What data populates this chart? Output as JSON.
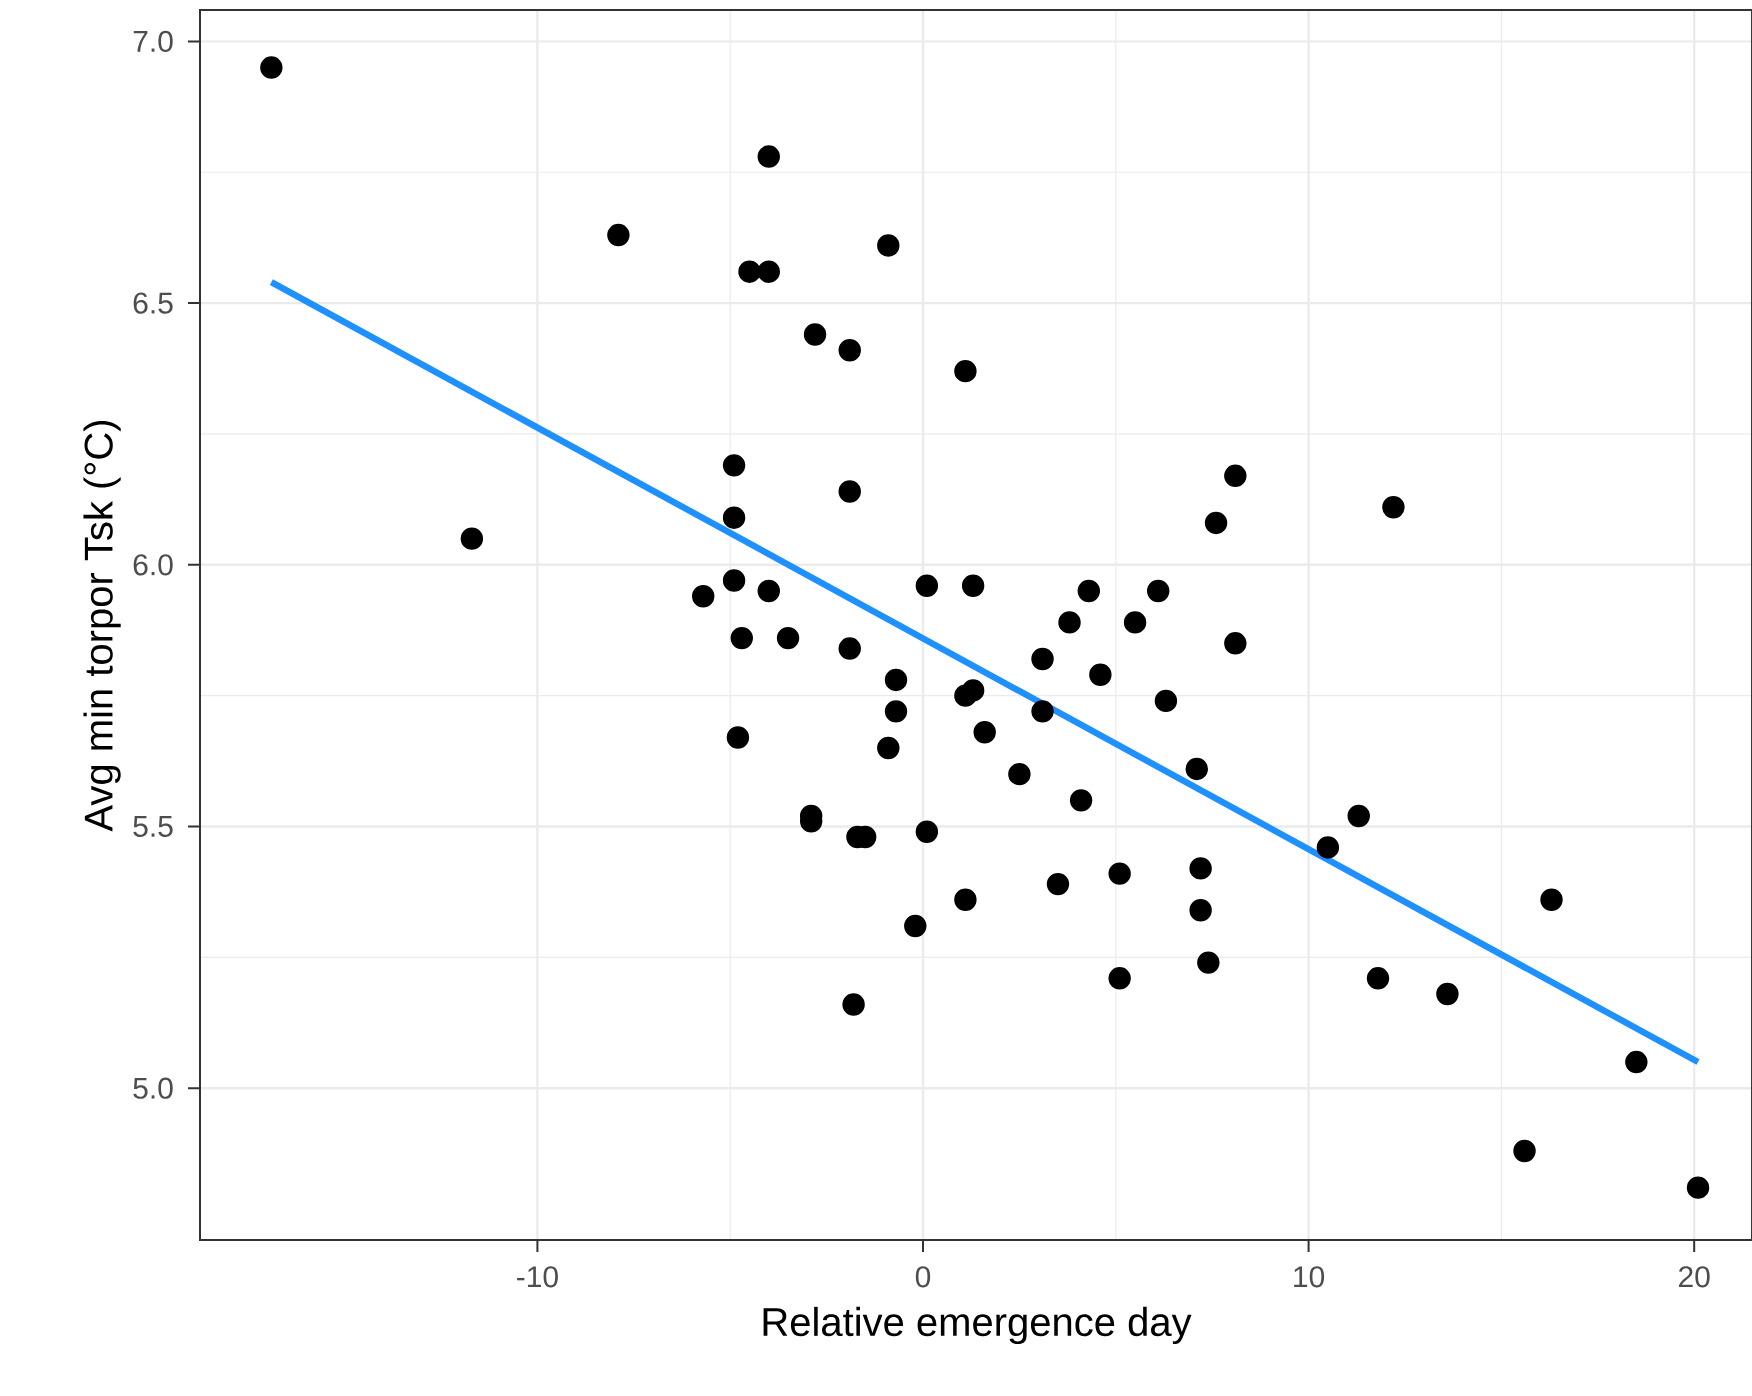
{
  "chart_data": {
    "type": "scatter",
    "xlabel": "Relative emergence day",
    "ylabel": "Avg min torpor Tsk (°C)",
    "xlim": [
      -18.75,
      21.5
    ],
    "ylim": [
      4.71,
      7.06
    ],
    "xticks": [
      -10,
      0,
      10,
      20
    ],
    "yticks": [
      {
        "value": 5,
        "label": "5.0"
      },
      5.5,
      {
        "value": 6,
        "label": "6.0"
      },
      6.5,
      {
        "value": 7,
        "label": "7.0"
      }
    ],
    "grid": true,
    "series": [
      {
        "color": "#000000",
        "marker": "circle",
        "x": [
          -16.9,
          -11.7,
          -7.9,
          -4.0,
          -4.5,
          -4.0,
          -0.9,
          -2.8,
          -1.9,
          1.1,
          -4.9,
          -4.9,
          -1.9,
          -5.7,
          -4.9,
          -4.0,
          -3.5,
          -4.7,
          0.1,
          1.3,
          -1.9,
          -0.7,
          -0.7,
          -0.9,
          -4.8,
          1.1,
          1.3,
          1.6,
          2.5,
          3.1,
          3.8,
          4.3,
          4.6,
          5.5,
          6.1,
          6.3,
          7.6,
          8.1,
          8.1,
          12.2,
          7.1,
          11.3,
          10.5,
          16.3,
          11.8,
          13.6,
          18.5,
          15.6,
          20.1,
          7.2,
          7.2,
          7.4,
          5.1,
          5.1,
          3.5,
          1.1,
          -0.2,
          -1.8,
          -2.9,
          -2.9,
          -1.7,
          -1.5,
          0.1,
          4.1,
          3.1
        ],
        "values": [
          6.95,
          6.05,
          6.63,
          6.78,
          6.56,
          6.56,
          6.61,
          6.44,
          6.41,
          6.37,
          6.19,
          6.09,
          6.14,
          5.94,
          5.97,
          5.95,
          5.86,
          5.86,
          5.96,
          5.96,
          5.84,
          5.78,
          5.72,
          5.65,
          5.67,
          5.75,
          5.76,
          5.68,
          5.6,
          5.82,
          5.89,
          5.95,
          5.79,
          5.89,
          5.95,
          5.74,
          6.08,
          6.17,
          5.85,
          6.11,
          5.61,
          5.52,
          5.46,
          5.36,
          5.21,
          5.18,
          5.05,
          4.88,
          4.81,
          5.42,
          5.34,
          5.24,
          5.41,
          5.21,
          5.39,
          5.36,
          5.31,
          5.16,
          5.52,
          5.51,
          5.48,
          5.48,
          5.49,
          5.55,
          5.72
        ]
      },
      {
        "type": "line",
        "color": "#1e90ff",
        "marker": "none",
        "line_style": "solid",
        "x": [
          -16.9,
          20.1
        ],
        "values": [
          6.54,
          5.05
        ]
      }
    ]
  }
}
